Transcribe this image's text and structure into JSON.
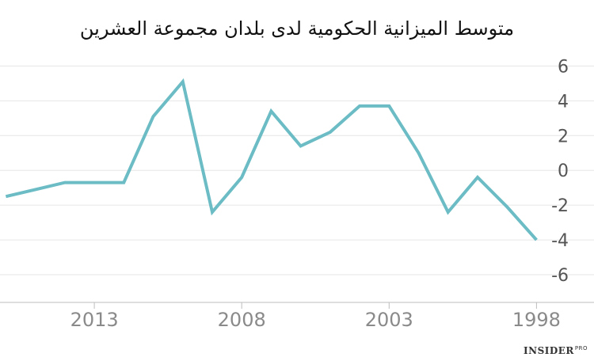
{
  "chart_data": {
    "type": "line",
    "title": "متوسط الميزانية الحكومية لدى بلدان مجموعة العشرين",
    "xlabel": "",
    "ylabel": "",
    "x_direction": "reversed",
    "xlim": [
      2016.2,
      1997.5
    ],
    "ylim": [
      -7,
      6.7
    ],
    "yticks": [
      6,
      4,
      2,
      0,
      -2,
      -4,
      -6
    ],
    "xticks": [
      2013,
      2008,
      2003,
      1998
    ],
    "grid": true,
    "series": [
      {
        "color": "#6bbcc4",
        "x": [
          2016,
          2015,
          2014,
          2013,
          2012,
          2011,
          2010,
          2009,
          2008,
          2007,
          2006,
          2005,
          2004,
          2003,
          2002,
          2001,
          2000,
          1999,
          1998
        ],
        "y": [
          -1.5,
          -1.1,
          -0.7,
          -0.7,
          -0.7,
          3.1,
          5.1,
          -2.4,
          -0.4,
          3.4,
          1.4,
          2.2,
          3.7,
          3.7,
          1.0,
          -2.4,
          -0.4,
          -2.1,
          -4.0
        ]
      }
    ]
  },
  "brand": {
    "name": "INSIDER",
    "suffix": "PRO"
  }
}
